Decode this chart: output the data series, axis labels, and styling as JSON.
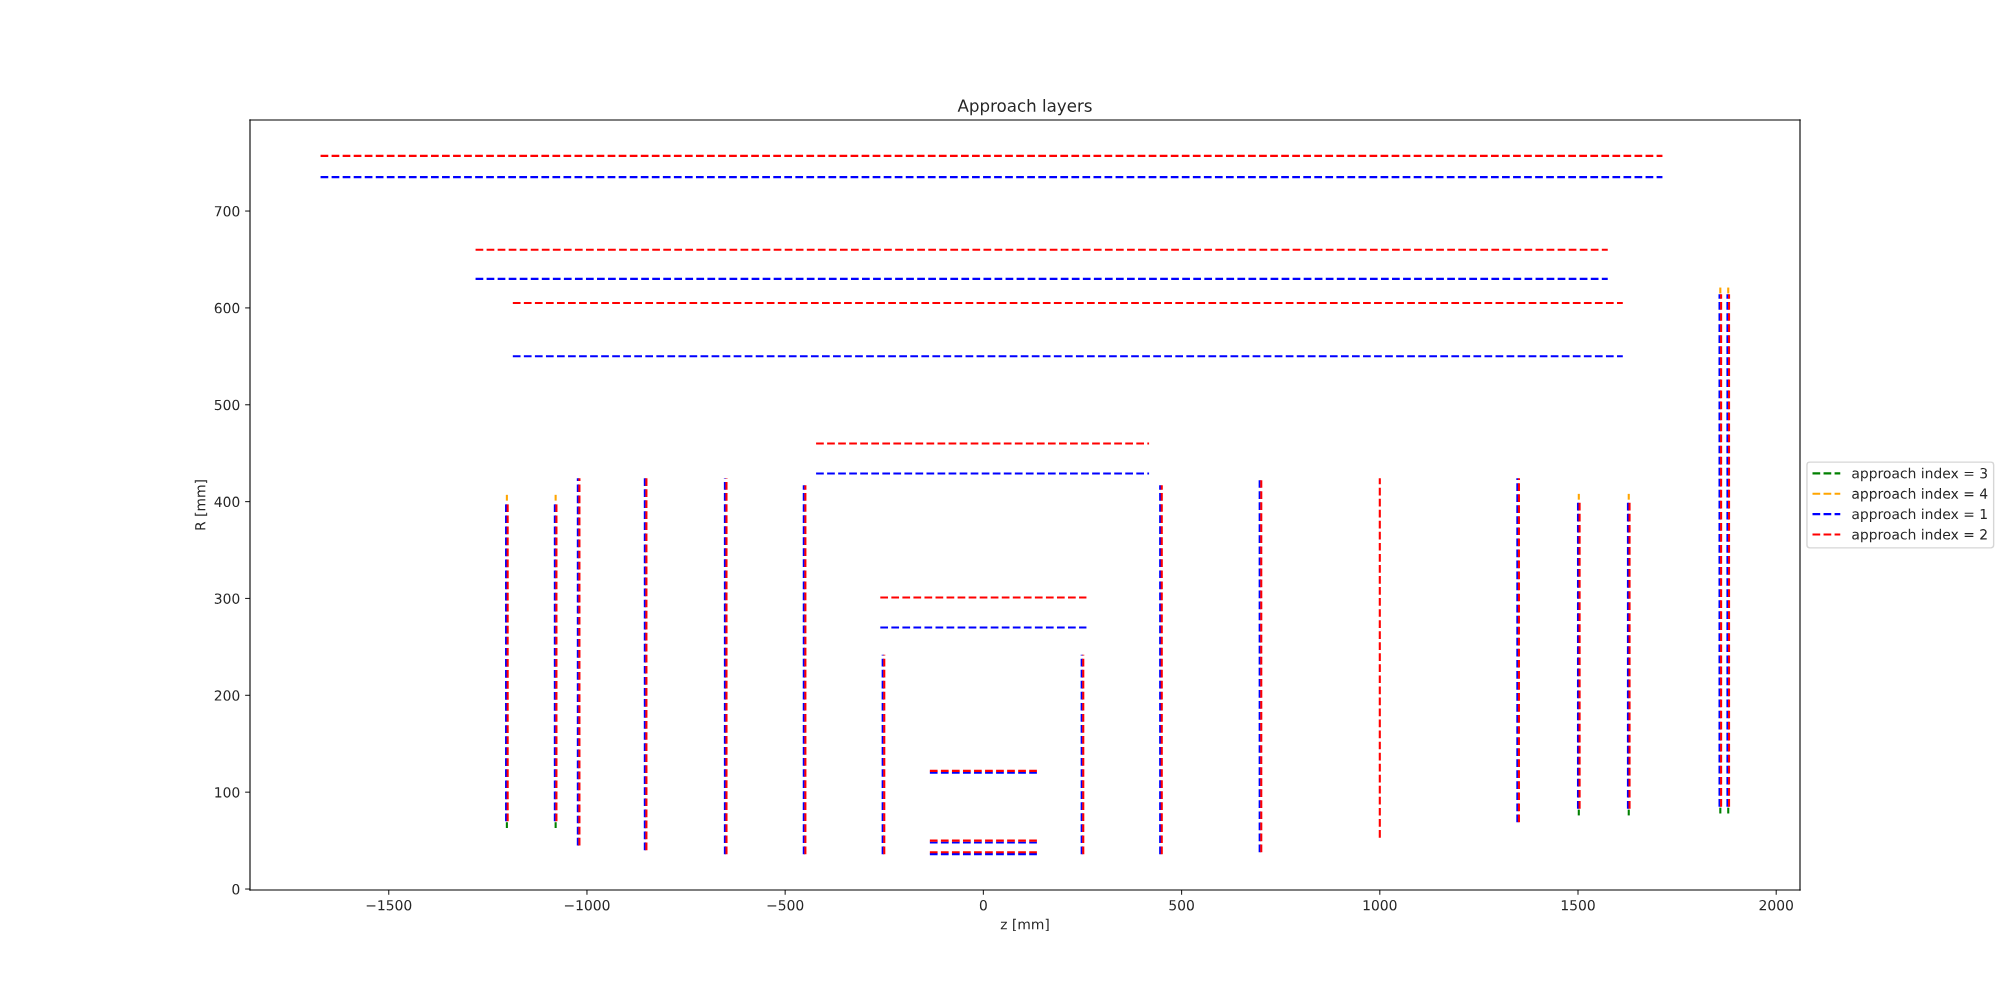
{
  "chart_data": {
    "type": "line",
    "title": "Approach layers",
    "xlabel": "z [mm]",
    "ylabel": "R [mm]",
    "xlim": [
      -1850,
      2060
    ],
    "ylim": [
      -1,
      794
    ],
    "xticks": [
      {
        "value": -1500,
        "label": "−1500"
      },
      {
        "value": -1000,
        "label": "−1000"
      },
      {
        "value": -500,
        "label": "−500"
      },
      0,
      500,
      1000,
      1500,
      2000
    ],
    "yticks": [
      0,
      100,
      200,
      300,
      400,
      500,
      600,
      700
    ],
    "grid": false,
    "legend": "right",
    "line_style": "dashed",
    "series": [
      {
        "name": "approach index = 3",
        "color": "#008000",
        "x": [
          -1202,
          -1202
        ],
        "values": [
          63,
          69
        ]
      },
      {
        "color": "#008000",
        "x": [
          -1079,
          -1079
        ],
        "values": [
          63,
          69
        ]
      },
      {
        "color": "#008000",
        "x": [
          1502,
          1502
        ],
        "values": [
          76,
          82
        ]
      },
      {
        "color": "#008000",
        "x": [
          1628,
          1628
        ],
        "values": [
          76,
          82
        ]
      },
      {
        "color": "#008000",
        "x": [
          1859,
          1859
        ],
        "values": [
          78,
          84
        ]
      },
      {
        "color": "#008000",
        "x": [
          1879,
          1879
        ],
        "values": [
          78,
          84
        ]
      },
      {
        "name": "approach index = 4",
        "color": "#ffa500",
        "x": [
          -1202,
          -1202
        ],
        "values": [
          401,
          407
        ]
      },
      {
        "color": "#ffa500",
        "x": [
          -1079,
          -1079
        ],
        "values": [
          401,
          407
        ]
      },
      {
        "color": "#ffa500",
        "x": [
          1502,
          1502
        ],
        "values": [
          402,
          408
        ]
      },
      {
        "color": "#ffa500",
        "x": [
          1628,
          1628
        ],
        "values": [
          402,
          408
        ]
      },
      {
        "color": "#ffa500",
        "x": [
          1859,
          1859
        ],
        "values": [
          615,
          621
        ]
      },
      {
        "color": "#ffa500",
        "x": [
          1879,
          1879
        ],
        "values": [
          615,
          621
        ]
      },
      {
        "name": "approach index = 1",
        "color": "#0000ff",
        "x": [
          -1672,
          1713
        ],
        "values": [
          735,
          735
        ]
      },
      {
        "color": "#0000ff",
        "x": [
          -1281,
          1575
        ],
        "values": [
          630,
          630
        ]
      },
      {
        "color": "#0000ff",
        "x": [
          -1187,
          1613
        ],
        "values": [
          550,
          550
        ]
      },
      {
        "color": "#0000ff",
        "x": [
          -422,
          418
        ],
        "values": [
          429,
          429
        ]
      },
      {
        "color": "#0000ff",
        "x": [
          -260,
          260
        ],
        "values": [
          270,
          270
        ]
      },
      {
        "color": "#0000ff",
        "x": [
          -135,
          135
        ],
        "values": [
          120,
          120
        ]
      },
      {
        "color": "#0000ff",
        "x": [
          -135,
          135
        ],
        "values": [
          48,
          48
        ]
      },
      {
        "color": "#0000ff",
        "x": [
          -135,
          135
        ],
        "values": [
          36,
          36
        ]
      },
      {
        "color": "#0000ff",
        "x": [
          -1204,
          -1204
        ],
        "values": [
          70,
          400
        ]
      },
      {
        "color": "#0000ff",
        "x": [
          -1081,
          -1081
        ],
        "values": [
          70,
          400
        ]
      },
      {
        "color": "#0000ff",
        "x": [
          -1023,
          -1023
        ],
        "values": [
          45,
          424
        ]
      },
      {
        "color": "#0000ff",
        "x": [
          -854,
          -854
        ],
        "values": [
          40,
          424
        ]
      },
      {
        "color": "#0000ff",
        "x": [
          -652,
          -652
        ],
        "values": [
          36,
          424
        ]
      },
      {
        "color": "#0000ff",
        "x": [
          -453,
          -453
        ],
        "values": [
          36,
          417
        ]
      },
      {
        "color": "#0000ff",
        "x": [
          -254,
          -254
        ],
        "values": [
          36,
          242
        ]
      },
      {
        "color": "#0000ff",
        "x": [
          248,
          248
        ],
        "values": [
          36,
          242
        ]
      },
      {
        "color": "#0000ff",
        "x": [
          446,
          446
        ],
        "values": [
          36,
          417
        ]
      },
      {
        "color": "#0000ff",
        "x": [
          697,
          697
        ],
        "values": [
          38,
          424
        ]
      },
      {
        "color": "#0000ff",
        "x": [
          1347,
          1347
        ],
        "values": [
          69,
          424
        ]
      },
      {
        "color": "#0000ff",
        "x": [
          1500,
          1500
        ],
        "values": [
          83,
          401
        ]
      },
      {
        "color": "#0000ff",
        "x": [
          1626,
          1626
        ],
        "values": [
          83,
          401
        ]
      },
      {
        "color": "#0000ff",
        "x": [
          1857,
          1857
        ],
        "values": [
          85,
          614
        ]
      },
      {
        "color": "#0000ff",
        "x": [
          1877,
          1877
        ],
        "values": [
          85,
          614
        ]
      },
      {
        "name": "approach index = 2",
        "color": "#ff0000",
        "x": [
          -1672,
          1713
        ],
        "values": [
          757,
          757
        ]
      },
      {
        "color": "#ff0000",
        "x": [
          -1281,
          1575
        ],
        "values": [
          660,
          660
        ]
      },
      {
        "color": "#ff0000",
        "x": [
          -1187,
          1613
        ],
        "values": [
          605,
          605
        ]
      },
      {
        "color": "#ff0000",
        "x": [
          -422,
          418
        ],
        "values": [
          460,
          460
        ]
      },
      {
        "color": "#ff0000",
        "x": [
          -260,
          260
        ],
        "values": [
          301,
          301
        ]
      },
      {
        "color": "#ff0000",
        "x": [
          -135,
          135
        ],
        "values": [
          122,
          122
        ]
      },
      {
        "color": "#ff0000",
        "x": [
          -135,
          135
        ],
        "values": [
          50,
          50
        ]
      },
      {
        "color": "#ff0000",
        "x": [
          -135,
          135
        ],
        "values": [
          38,
          38
        ]
      },
      {
        "color": "#ff0000",
        "x": [
          -1200,
          -1200
        ],
        "values": [
          70,
          400
        ]
      },
      {
        "color": "#ff0000",
        "x": [
          -1077,
          -1077
        ],
        "values": [
          70,
          400
        ]
      },
      {
        "color": "#ff0000",
        "x": [
          -1019,
          -1019
        ],
        "values": [
          45,
          424
        ]
      },
      {
        "color": "#ff0000",
        "x": [
          -850,
          -850
        ],
        "values": [
          40,
          424
        ]
      },
      {
        "color": "#ff0000",
        "x": [
          -648,
          -648
        ],
        "values": [
          36,
          424
        ]
      },
      {
        "color": "#ff0000",
        "x": [
          -449,
          -449
        ],
        "values": [
          36,
          417
        ]
      },
      {
        "color": "#ff0000",
        "x": [
          -250,
          -250
        ],
        "values": [
          36,
          242
        ]
      },
      {
        "color": "#ff0000",
        "x": [
          252,
          252
        ],
        "values": [
          36,
          242
        ]
      },
      {
        "color": "#ff0000",
        "x": [
          450,
          450
        ],
        "values": [
          36,
          417
        ]
      },
      {
        "color": "#ff0000",
        "x": [
          701,
          701
        ],
        "values": [
          38,
          424
        ]
      },
      {
        "color": "#ff0000",
        "x": [
          1000,
          1000
        ],
        "values": [
          53,
          424
        ]
      },
      {
        "color": "#ff0000",
        "x": [
          1351,
          1351
        ],
        "values": [
          69,
          424
        ]
      },
      {
        "color": "#ff0000",
        "x": [
          1504,
          1504
        ],
        "values": [
          83,
          401
        ]
      },
      {
        "color": "#ff0000",
        "x": [
          1630,
          1630
        ],
        "values": [
          83,
          401
        ]
      },
      {
        "color": "#ff0000",
        "x": [
          1861,
          1861
        ],
        "values": [
          85,
          614
        ]
      },
      {
        "color": "#ff0000",
        "x": [
          1881,
          1881
        ],
        "values": [
          85,
          614
        ]
      }
    ]
  }
}
